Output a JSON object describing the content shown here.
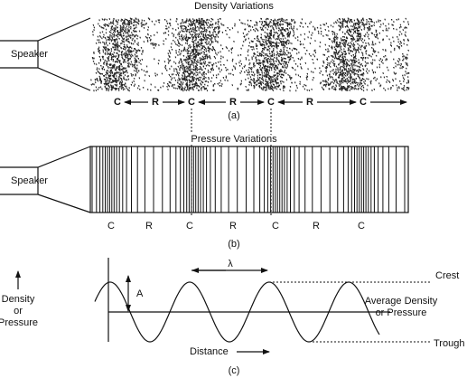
{
  "panel_a": {
    "title": "Density Variations",
    "speaker": "Speaker",
    "labels": [
      "C",
      "R",
      "C",
      "R",
      "C",
      "R",
      "C"
    ],
    "caption": "(a)"
  },
  "panel_b": {
    "title": "Pressure Variations",
    "speaker": "Speaker",
    "labels": [
      "C",
      "R",
      "C",
      "R",
      "C",
      "R",
      "C"
    ],
    "caption": "(b)"
  },
  "panel_c": {
    "y_label": [
      "Density",
      "or",
      "Pressure"
    ],
    "amplitude": "A",
    "wavelength": "λ",
    "crest": "Crest",
    "average": [
      "Average Density",
      "or Pressure"
    ],
    "x_label": "Distance",
    "trough": "Trough",
    "caption": "(c)"
  }
}
